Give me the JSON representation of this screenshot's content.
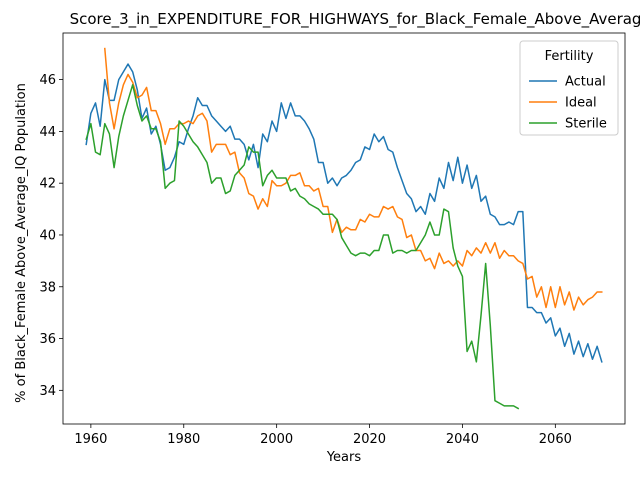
{
  "chart_data": {
    "type": "line",
    "title": "Score_3_in_EXPENDITURE_FOR_HIGHWAYS_for_Black_Female_Above_Average_IQ",
    "xlabel": "Years",
    "ylabel": "% of Black_Female Above_Average_IQ Population",
    "xlim": [
      1954,
      2075
    ],
    "ylim": [
      32.7,
      47.8
    ],
    "xticks": [
      1960,
      1980,
      2000,
      2020,
      2040,
      2060
    ],
    "yticks": [
      34,
      36,
      38,
      40,
      42,
      44,
      46
    ],
    "grid": false,
    "legend": {
      "title": "Fertility",
      "placement": "top-right"
    },
    "series": [
      {
        "name": "Actual",
        "color": "#1f77b4",
        "x": [
          1959,
          1960,
          1961,
          1962,
          1963,
          1964,
          1965,
          1966,
          1967,
          1968,
          1969,
          1970,
          1971,
          1972,
          1973,
          1974,
          1975,
          1976,
          1977,
          1978,
          1979,
          1980,
          1981,
          1982,
          1983,
          1984,
          1985,
          1986,
          1987,
          1988,
          1989,
          1990,
          1991,
          1992,
          1993,
          1994,
          1995,
          1996,
          1997,
          1998,
          1999,
          2000,
          2001,
          2002,
          2003,
          2004,
          2005,
          2006,
          2007,
          2008,
          2009,
          2010,
          2011,
          2012,
          2013,
          2014,
          2015,
          2016,
          2017,
          2018,
          2019,
          2020,
          2021,
          2022,
          2023,
          2024,
          2025,
          2026,
          2027,
          2028,
          2029,
          2030,
          2031,
          2032,
          2033,
          2034,
          2035,
          2036,
          2037,
          2038,
          2039,
          2040,
          2041,
          2042,
          2043,
          2044,
          2045,
          2046,
          2047,
          2048,
          2049,
          2050,
          2051,
          2052,
          2053,
          2054,
          2055,
          2056,
          2057,
          2058,
          2059,
          2060,
          2061,
          2062,
          2063,
          2064,
          2065,
          2066,
          2067,
          2068,
          2069,
          2070
        ],
        "values": [
          43.5,
          44.7,
          45.1,
          44.2,
          46.0,
          45.2,
          45.2,
          46.0,
          46.3,
          46.6,
          46.3,
          45.6,
          44.5,
          44.9,
          43.9,
          44.2,
          43.5,
          42.5,
          42.6,
          43.0,
          43.6,
          43.5,
          44.1,
          44.6,
          45.3,
          45.0,
          45.0,
          44.6,
          44.4,
          44.2,
          44.0,
          44.2,
          43.7,
          43.7,
          43.5,
          42.9,
          43.5,
          42.6,
          43.9,
          43.6,
          44.4,
          44.0,
          45.1,
          44.5,
          45.1,
          44.6,
          44.6,
          44.4,
          44.1,
          43.7,
          42.8,
          42.8,
          42.0,
          42.2,
          41.9,
          42.2,
          42.3,
          42.5,
          42.8,
          42.9,
          43.4,
          43.3,
          43.9,
          43.6,
          43.8,
          43.3,
          43.2,
          42.6,
          42.1,
          41.6,
          41.4,
          40.9,
          41.1,
          40.8,
          41.6,
          41.3,
          42.2,
          41.8,
          42.8,
          42.1,
          43.0,
          42.0,
          42.7,
          41.8,
          42.3,
          41.3,
          41.5,
          40.8,
          40.7,
          40.4,
          40.4,
          40.5,
          40.4,
          40.9,
          40.9,
          37.2,
          37.2,
          37.0,
          37.0,
          36.6,
          36.8,
          36.1,
          36.4,
          35.7,
          36.2,
          35.4,
          35.9,
          35.3,
          35.8,
          35.2,
          35.7,
          35.1
        ]
      },
      {
        "name": "Ideal",
        "color": "#ff7f0e",
        "x": [
          1963,
          1964,
          1965,
          1966,
          1967,
          1968,
          1969,
          1970,
          1971,
          1972,
          1973,
          1974,
          1975,
          1976,
          1977,
          1978,
          1979,
          1980,
          1981,
          1982,
          1983,
          1984,
          1985,
          1986,
          1987,
          1988,
          1989,
          1990,
          1991,
          1992,
          1993,
          1994,
          1995,
          1996,
          1997,
          1998,
          1999,
          2000,
          2001,
          2002,
          2003,
          2004,
          2005,
          2006,
          2007,
          2008,
          2009,
          2010,
          2011,
          2012,
          2013,
          2014,
          2015,
          2016,
          2017,
          2018,
          2019,
          2020,
          2021,
          2022,
          2023,
          2024,
          2025,
          2026,
          2027,
          2028,
          2029,
          2030,
          2031,
          2032,
          2033,
          2034,
          2035,
          2036,
          2037,
          2038,
          2039,
          2040,
          2041,
          2042,
          2043,
          2044,
          2045,
          2046,
          2047,
          2048,
          2049,
          2050,
          2051,
          2052,
          2053,
          2054,
          2055,
          2056,
          2057,
          2058,
          2059,
          2060,
          2061,
          2062,
          2063,
          2064,
          2065,
          2066,
          2067,
          2068,
          2069,
          2070
        ],
        "values": [
          47.2,
          45.1,
          44.1,
          45.1,
          45.8,
          46.2,
          45.9,
          45.3,
          45.4,
          45.7,
          44.8,
          44.8,
          44.3,
          43.5,
          44.1,
          44.1,
          44.3,
          44.3,
          44.4,
          44.3,
          44.6,
          44.7,
          44.4,
          43.2,
          43.5,
          43.5,
          43.5,
          43.1,
          43.2,
          42.4,
          42.2,
          41.6,
          41.5,
          41.0,
          41.4,
          41.1,
          42.1,
          41.9,
          41.9,
          42.0,
          42.3,
          42.3,
          42.4,
          41.9,
          41.9,
          41.7,
          41.8,
          41.1,
          41.1,
          40.1,
          40.6,
          40.1,
          40.3,
          40.2,
          40.2,
          40.6,
          40.5,
          40.8,
          40.7,
          40.7,
          41.1,
          41.0,
          41.1,
          40.7,
          40.6,
          39.9,
          40.0,
          39.4,
          39.4,
          39.0,
          39.1,
          38.7,
          39.3,
          38.9,
          39.0,
          38.8,
          39.0,
          38.8,
          39.4,
          39.2,
          39.5,
          39.3,
          39.7,
          39.3,
          39.7,
          39.1,
          39.4,
          39.2,
          39.2,
          39.0,
          38.9,
          38.3,
          38.4,
          37.6,
          38.0,
          37.2,
          38.0,
          37.2,
          38.0,
          37.3,
          37.8,
          37.1,
          37.6,
          37.3,
          37.5,
          37.6,
          37.8,
          37.8
        ]
      },
      {
        "name": "Sterile",
        "color": "#2ca02c",
        "x": [
          1959,
          1960,
          1961,
          1962,
          1963,
          1964,
          1965,
          1966,
          1967,
          1968,
          1969,
          1970,
          1971,
          1972,
          1973,
          1974,
          1975,
          1976,
          1977,
          1978,
          1979,
          1980,
          1981,
          1982,
          1983,
          1984,
          1985,
          1986,
          1987,
          1988,
          1989,
          1990,
          1991,
          1992,
          1993,
          1994,
          1995,
          1996,
          1997,
          1998,
          1999,
          2000,
          2001,
          2002,
          2003,
          2004,
          2005,
          2006,
          2007,
          2008,
          2009,
          2010,
          2011,
          2012,
          2013,
          2014,
          2015,
          2016,
          2017,
          2018,
          2019,
          2020,
          2021,
          2022,
          2023,
          2024,
          2025,
          2026,
          2027,
          2028,
          2029,
          2030,
          2031,
          2032,
          2033,
          2034,
          2035,
          2036,
          2037,
          2038,
          2039,
          2040,
          2041,
          2042,
          2043,
          2044,
          2045,
          2046,
          2047,
          2048,
          2049,
          2050,
          2051,
          2052
        ],
        "values": [
          43.7,
          44.3,
          43.2,
          43.1,
          44.3,
          43.9,
          42.6,
          43.8,
          44.6,
          45.2,
          45.8,
          45.0,
          44.4,
          44.6,
          44.1,
          44.1,
          43.6,
          41.8,
          42.0,
          42.1,
          44.4,
          44.2,
          43.9,
          43.6,
          43.4,
          43.1,
          42.8,
          42.0,
          42.2,
          42.2,
          41.6,
          41.7,
          42.3,
          42.5,
          42.7,
          43.4,
          43.2,
          43.2,
          41.9,
          42.3,
          42.5,
          42.2,
          42.2,
          42.2,
          41.7,
          41.8,
          41.5,
          41.4,
          41.2,
          41.1,
          41.0,
          40.8,
          40.8,
          40.8,
          40.6,
          39.9,
          39.6,
          39.3,
          39.2,
          39.3,
          39.3,
          39.2,
          39.4,
          39.4,
          40.0,
          40.0,
          39.3,
          39.4,
          39.4,
          39.3,
          39.4,
          39.4,
          39.7,
          40.0,
          40.5,
          40.0,
          40.0,
          41.0,
          40.9,
          39.5,
          38.8,
          38.4,
          35.5,
          35.9,
          35.1,
          36.9,
          38.9,
          36.5,
          33.6,
          33.5,
          33.4,
          33.4,
          33.4,
          33.3
        ]
      }
    ]
  }
}
